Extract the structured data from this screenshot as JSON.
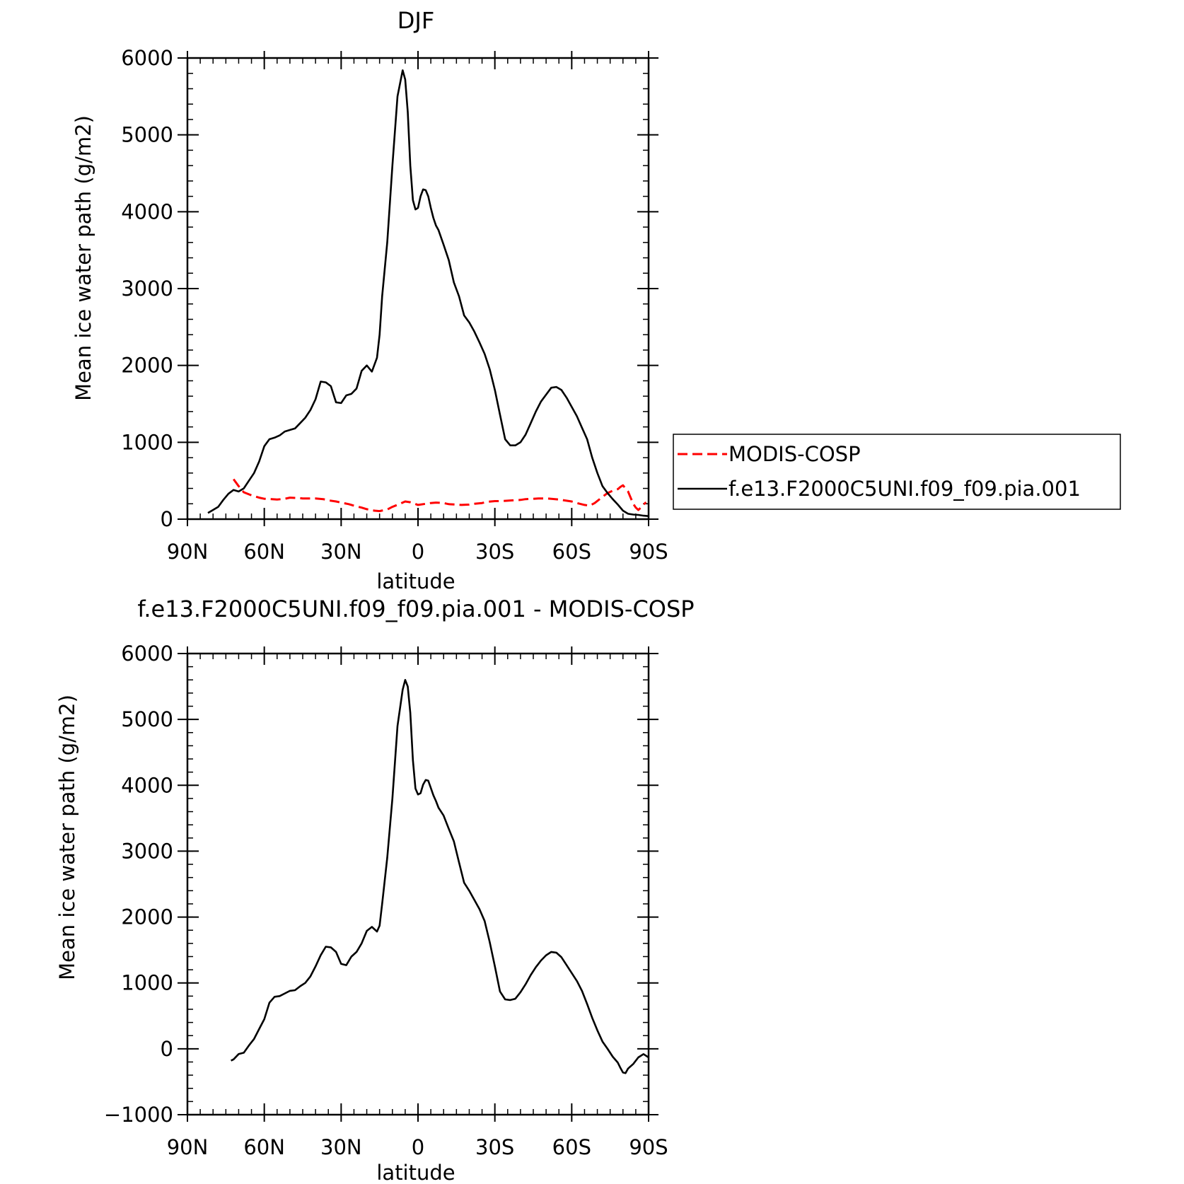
{
  "chart_data": [
    {
      "type": "line",
      "title": "DJF",
      "xlabel": "latitude",
      "ylabel": "Mean ice water path (g/m2)",
      "xlim": [
        90,
        -90
      ],
      "ylim": [
        0,
        6000
      ],
      "xticks": [
        90,
        60,
        30,
        0,
        -30,
        -60,
        -90
      ],
      "xticklabels": [
        "90N",
        "60N",
        "30N",
        "0",
        "30S",
        "60S",
        "90S"
      ],
      "yticks": [
        0,
        1000,
        2000,
        3000,
        4000,
        5000,
        6000
      ],
      "yticklabels": [
        "0",
        "1000",
        "2000",
        "3000",
        "4000",
        "5000",
        "6000"
      ],
      "legend": {
        "placement": "right",
        "entries": [
          "MODIS-COSP",
          "f.e13.F2000C5UNI.f09_f09.pia.001"
        ]
      },
      "series": [
        {
          "name": "MODIS-COSP",
          "color": "#ff0000",
          "dash": "dashed",
          "x": [
            72,
            70,
            68,
            65,
            62,
            60,
            57,
            55,
            52,
            50,
            47,
            45,
            42,
            40,
            37,
            35,
            32,
            30,
            27,
            25,
            22,
            20,
            17,
            15,
            12,
            10,
            7,
            5,
            3,
            0,
            -3,
            -5,
            -7,
            -10,
            -12,
            -15,
            -17,
            -20,
            -22,
            -25,
            -27,
            -30,
            -32,
            -35,
            -37,
            -40,
            -42,
            -45,
            -47,
            -50,
            -52,
            -55,
            -57,
            -60,
            -62,
            -65,
            -67,
            -69,
            -72,
            -74,
            -76,
            -78,
            -79,
            -80,
            -81,
            -82,
            -83,
            -84,
            -85,
            -86,
            -87,
            -88,
            -89
          ],
          "y": [
            520,
            430,
            350,
            310,
            280,
            265,
            260,
            255,
            265,
            280,
            275,
            270,
            270,
            270,
            260,
            245,
            230,
            215,
            195,
            175,
            150,
            130,
            110,
            105,
            125,
            160,
            200,
            230,
            220,
            185,
            200,
            210,
            215,
            210,
            195,
            190,
            185,
            190,
            200,
            210,
            225,
            235,
            235,
            240,
            245,
            250,
            260,
            265,
            270,
            270,
            265,
            255,
            245,
            230,
            210,
            185,
            175,
            210,
            290,
            340,
            370,
            390,
            420,
            440,
            400,
            360,
            280,
            200,
            150,
            120,
            150,
            190,
            220
          ]
        },
        {
          "name": "f.e13.F2000C5UNI.f09_f09.pia.001",
          "color": "#000000",
          "dash": "solid",
          "x": [
            82,
            80,
            78,
            76,
            74,
            72,
            70,
            68,
            66,
            64,
            62,
            60,
            58,
            56,
            54,
            52,
            50,
            48,
            46,
            44,
            42,
            40,
            38,
            36,
            34,
            32,
            30,
            28,
            26,
            24,
            22,
            20,
            18,
            16,
            15,
            14,
            12,
            10,
            8,
            6,
            5,
            4,
            3,
            2,
            1,
            0,
            -1,
            -2,
            -3,
            -4,
            -5,
            -6,
            -7,
            -8,
            -10,
            -12,
            -14,
            -16,
            -18,
            -20,
            -22,
            -24,
            -26,
            -28,
            -30,
            -32,
            -34,
            -36,
            -38,
            -40,
            -42,
            -44,
            -46,
            -48,
            -50,
            -52,
            -54,
            -56,
            -58,
            -60,
            -62,
            -64,
            -66,
            -68,
            -70,
            -72,
            -74,
            -76,
            -78,
            -80,
            -82,
            -84,
            -86,
            -88,
            -90
          ],
          "y": [
            80,
            120,
            160,
            250,
            330,
            380,
            360,
            400,
            500,
            600,
            750,
            950,
            1040,
            1060,
            1090,
            1140,
            1160,
            1180,
            1250,
            1320,
            1420,
            1560,
            1790,
            1780,
            1730,
            1520,
            1510,
            1610,
            1630,
            1700,
            1930,
            2000,
            1920,
            2100,
            2400,
            2900,
            3600,
            4600,
            5500,
            5840,
            5720,
            5300,
            4600,
            4150,
            4030,
            4050,
            4200,
            4290,
            4280,
            4200,
            4050,
            3920,
            3820,
            3760,
            3570,
            3370,
            3080,
            2900,
            2650,
            2560,
            2440,
            2300,
            2150,
            1950,
            1680,
            1360,
            1040,
            960,
            960,
            1000,
            1100,
            1250,
            1400,
            1530,
            1620,
            1710,
            1720,
            1680,
            1580,
            1460,
            1340,
            1190,
            1040,
            800,
            600,
            430,
            340,
            260,
            190,
            110,
            70,
            60,
            55,
            45,
            40
          ]
        }
      ]
    },
    {
      "type": "line",
      "title": "f.e13.F2000C5UNI.f09_f09.pia.001 - MODIS-COSP",
      "xlabel": "latitude",
      "ylabel": "Mean ice water path (g/m2)",
      "xlim": [
        90,
        -90
      ],
      "ylim": [
        -1000,
        6000
      ],
      "xticks": [
        90,
        60,
        30,
        0,
        -30,
        -60,
        -90
      ],
      "xticklabels": [
        "90N",
        "60N",
        "30N",
        "0",
        "30S",
        "60S",
        "90S"
      ],
      "yticks": [
        -1000,
        0,
        1000,
        2000,
        3000,
        4000,
        5000,
        6000
      ],
      "yticklabels": [
        "−1000",
        "0",
        "1000",
        "2000",
        "3000",
        "4000",
        "5000",
        "6000"
      ],
      "series": [
        {
          "color": "#000000",
          "dash": "solid",
          "x": [
            73,
            72,
            70,
            68,
            66,
            64,
            62,
            60,
            58,
            56,
            54,
            52,
            50,
            48,
            46,
            44,
            42,
            40,
            38,
            36,
            34,
            32,
            30,
            28,
            26,
            24,
            22,
            20,
            18,
            16,
            15,
            14,
            12,
            10,
            8,
            6,
            5,
            4,
            3,
            2,
            1,
            0,
            -1,
            -2,
            -3,
            -4,
            -5,
            -6,
            -7,
            -8,
            -10,
            -12,
            -14,
            -16,
            -18,
            -20,
            -22,
            -24,
            -26,
            -28,
            -30,
            -32,
            -34,
            -36,
            -38,
            -40,
            -42,
            -44,
            -46,
            -48,
            -50,
            -52,
            -54,
            -56,
            -58,
            -60,
            -62,
            -64,
            -66,
            -68,
            -70,
            -72,
            -74,
            -76,
            -78,
            -79,
            -80,
            -81,
            -82,
            -84,
            -86,
            -88,
            -90
          ],
          "y": [
            -180,
            -160,
            -80,
            -60,
            50,
            150,
            300,
            450,
            700,
            790,
            800,
            840,
            880,
            890,
            950,
            1000,
            1100,
            1250,
            1420,
            1550,
            1540,
            1470,
            1290,
            1270,
            1400,
            1470,
            1600,
            1790,
            1850,
            1780,
            1870,
            2200,
            2900,
            3800,
            4900,
            5450,
            5600,
            5500,
            5100,
            4380,
            3950,
            3860,
            3880,
            4010,
            4080,
            4070,
            3960,
            3850,
            3760,
            3660,
            3540,
            3340,
            3150,
            2830,
            2520,
            2400,
            2260,
            2120,
            1940,
            1620,
            1250,
            870,
            750,
            740,
            760,
            860,
            980,
            1120,
            1240,
            1340,
            1420,
            1470,
            1460,
            1390,
            1270,
            1150,
            1030,
            880,
            680,
            470,
            280,
            110,
            0,
            -120,
            -210,
            -290,
            -360,
            -370,
            -300,
            -230,
            -130,
            -80,
            -130
          ]
        }
      ]
    }
  ]
}
